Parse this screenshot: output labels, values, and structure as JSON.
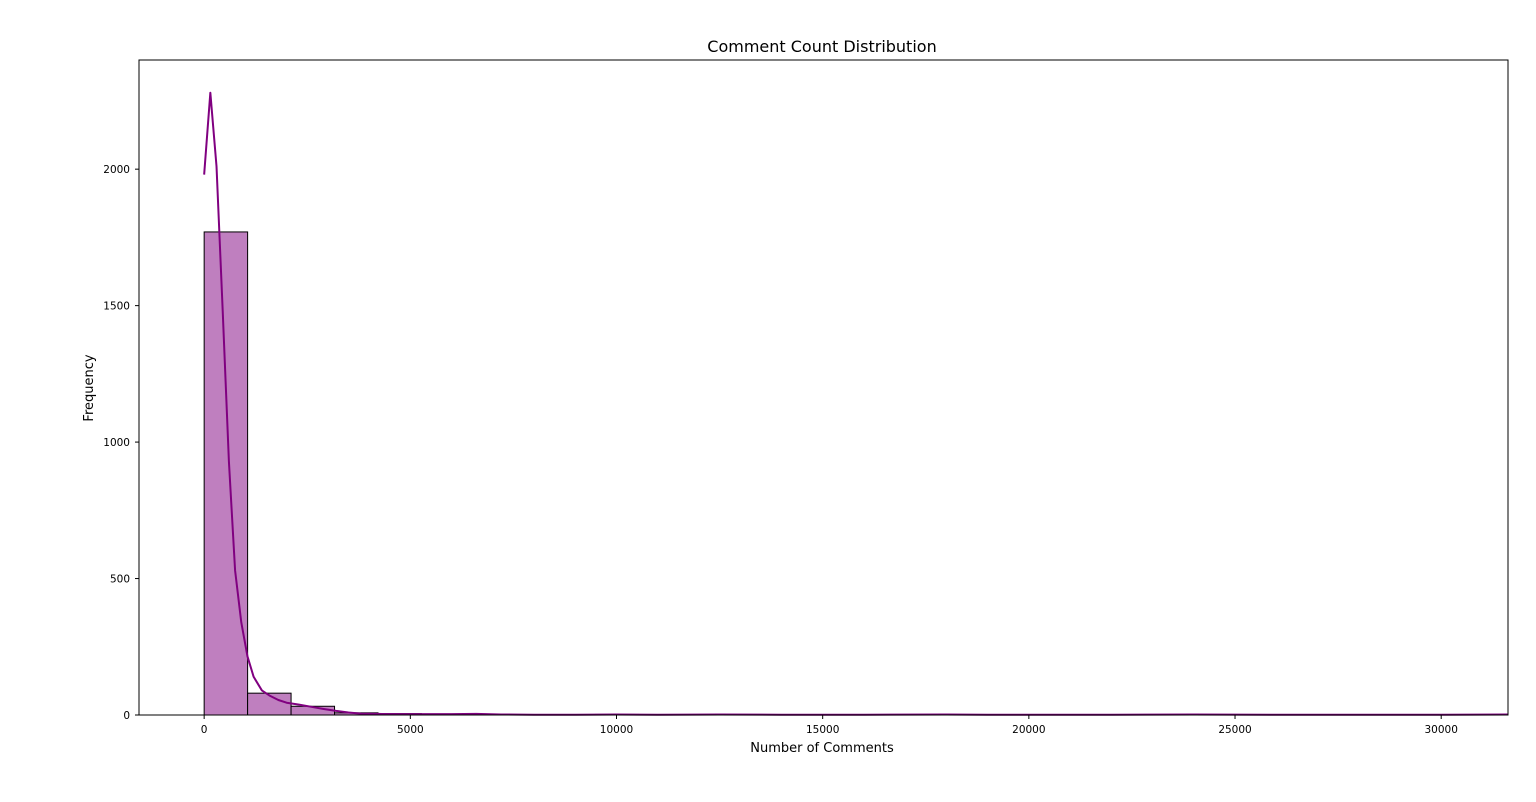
{
  "chart_data": {
    "type": "bar",
    "title": "Comment Count Distribution",
    "xlabel": "Number of Comments",
    "ylabel": "Frequency",
    "xlim": [
      -1580,
      31620
    ],
    "ylim": [
      0,
      2400
    ],
    "xticks": [
      "0",
      "5000",
      "10000",
      "15000",
      "20000",
      "25000",
      "30000"
    ],
    "yticks": [
      "0",
      "500",
      "1000",
      "1500",
      "2000"
    ],
    "bins": [
      {
        "x0": 0,
        "x1": 1054,
        "count": 1770
      },
      {
        "x0": 1054,
        "x1": 2108,
        "count": 80
      },
      {
        "x0": 2108,
        "x1": 3162,
        "count": 32
      },
      {
        "x0": 3162,
        "x1": 4216,
        "count": 8
      },
      {
        "x0": 4216,
        "x1": 5270,
        "count": 5
      },
      {
        "x0": 5270,
        "x1": 6324,
        "count": 3
      },
      {
        "x0": 6324,
        "x1": 7378,
        "count": 3
      },
      {
        "x0": 7378,
        "x1": 8432,
        "count": 1
      },
      {
        "x0": 8432,
        "x1": 9486,
        "count": 1
      },
      {
        "x0": 9486,
        "x1": 10540,
        "count": 2
      },
      {
        "x0": 10540,
        "x1": 11594,
        "count": 0
      },
      {
        "x0": 11594,
        "x1": 12648,
        "count": 1
      },
      {
        "x0": 12648,
        "x1": 13702,
        "count": 0
      },
      {
        "x0": 13702,
        "x1": 14756,
        "count": 0
      },
      {
        "x0": 14756,
        "x1": 15810,
        "count": 0
      },
      {
        "x0": 15810,
        "x1": 16864,
        "count": 0
      },
      {
        "x0": 16864,
        "x1": 17918,
        "count": 0
      },
      {
        "x0": 17918,
        "x1": 18972,
        "count": 1
      },
      {
        "x0": 18972,
        "x1": 20026,
        "count": 0
      },
      {
        "x0": 20026,
        "x1": 21080,
        "count": 0
      },
      {
        "x0": 21080,
        "x1": 22134,
        "count": 0
      },
      {
        "x0": 22134,
        "x1": 23188,
        "count": 0
      },
      {
        "x0": 23188,
        "x1": 24242,
        "count": 1
      },
      {
        "x0": 24242,
        "x1": 25296,
        "count": 0
      },
      {
        "x0": 25296,
        "x1": 26350,
        "count": 0
      },
      {
        "x0": 26350,
        "x1": 27404,
        "count": 0
      },
      {
        "x0": 27404,
        "x1": 28458,
        "count": 0
      },
      {
        "x0": 28458,
        "x1": 29512,
        "count": 0
      },
      {
        "x0": 29512,
        "x1": 30566,
        "count": 0
      },
      {
        "x0": 30566,
        "x1": 31620,
        "count": 1
      }
    ],
    "kde": [
      [
        0,
        1980
      ],
      [
        150,
        2280
      ],
      [
        300,
        2010
      ],
      [
        450,
        1480
      ],
      [
        600,
        930
      ],
      [
        750,
        530
      ],
      [
        900,
        340
      ],
      [
        1050,
        215
      ],
      [
        1200,
        140
      ],
      [
        1400,
        90
      ],
      [
        1600,
        70
      ],
      [
        1800,
        55
      ],
      [
        2000,
        45
      ],
      [
        2300,
        38
      ],
      [
        2600,
        30
      ],
      [
        2900,
        22
      ],
      [
        3200,
        15
      ],
      [
        3500,
        9
      ],
      [
        3800,
        5
      ],
      [
        4200,
        4
      ],
      [
        5000,
        3
      ],
      [
        6000,
        3
      ],
      [
        6600,
        4
      ],
      [
        7200,
        2
      ],
      [
        8000,
        1
      ],
      [
        9000,
        1
      ],
      [
        10000,
        2
      ],
      [
        11000,
        1
      ],
      [
        12500,
        2
      ],
      [
        14000,
        1
      ],
      [
        16000,
        1
      ],
      [
        18000,
        2
      ],
      [
        19000,
        1
      ],
      [
        22000,
        1
      ],
      [
        24000,
        2
      ],
      [
        26000,
        1
      ],
      [
        28000,
        1
      ],
      [
        30000,
        1
      ],
      [
        31620,
        2
      ]
    ],
    "bar_color": "#bf7fbf",
    "bar_edge_color": "#000000",
    "kde_color": "#800080",
    "grid": false,
    "legend": "none"
  }
}
